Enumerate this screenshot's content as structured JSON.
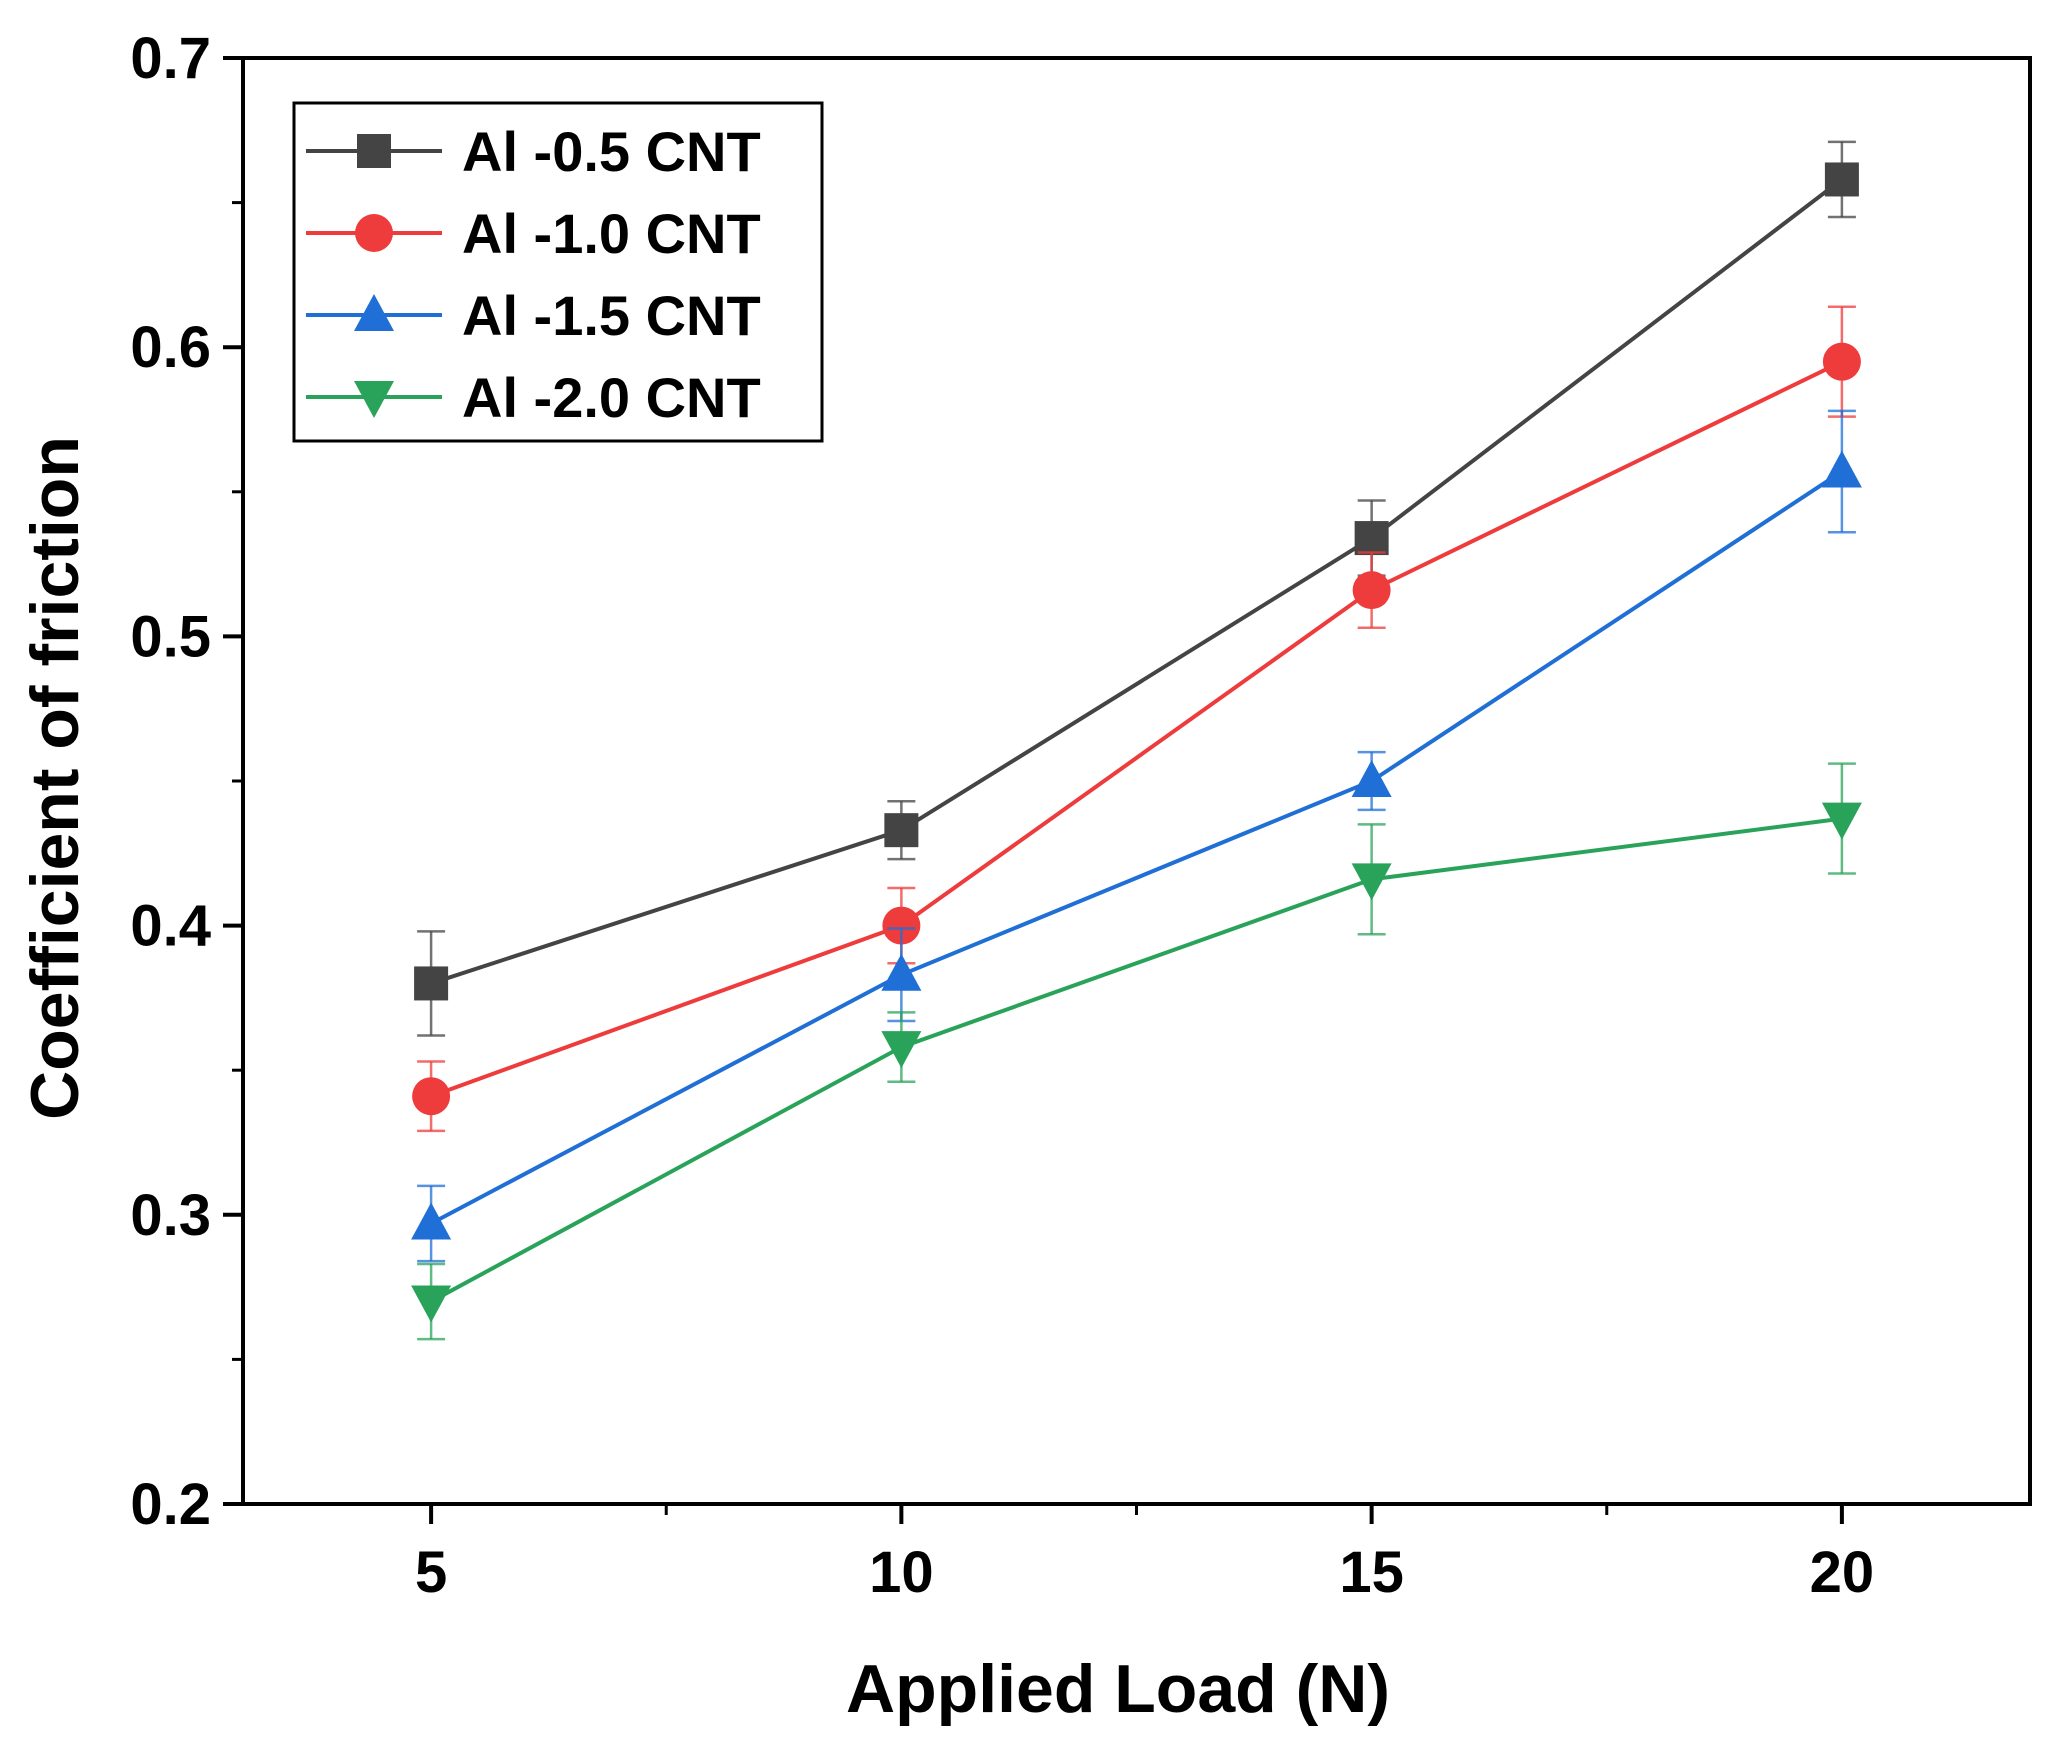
{
  "chart_data": {
    "type": "line",
    "title": "",
    "xlabel": "Applied Load (N)",
    "ylabel": "Coefficient of friction",
    "x": [
      5,
      10,
      15,
      20
    ],
    "xlim": [
      3,
      22
    ],
    "ylim": [
      0.2,
      0.7
    ],
    "xticks": [
      5,
      10,
      15,
      20
    ],
    "xtick_labels": [
      "5",
      "10",
      "15",
      "20"
    ],
    "yticks": [
      0.2,
      0.3,
      0.4,
      0.5,
      0.6,
      0.7
    ],
    "ytick_labels": [
      "0.2",
      "0.3",
      "0.4",
      "0.5",
      "0.6",
      "0.7"
    ],
    "grid": false,
    "legend_position": "top-left",
    "series": [
      {
        "name": "Al -0.5 CNT",
        "color": "#444444",
        "marker": "square",
        "values": [
          0.38,
          0.433,
          0.534,
          0.658
        ],
        "errors": [
          0.018,
          0.01,
          0.013,
          0.013
        ]
      },
      {
        "name": "Al -1.0 CNT",
        "color": "#ee3b3b",
        "marker": "circle",
        "values": [
          0.341,
          0.4,
          0.516,
          0.595
        ],
        "errors": [
          0.012,
          0.013,
          0.013,
          0.019
        ]
      },
      {
        "name": "Al -1.5 CNT",
        "color": "#1f6fd6",
        "marker": "triangle-up",
        "values": [
          0.297,
          0.383,
          0.45,
          0.557
        ],
        "errors": [
          0.013,
          0.016,
          0.01,
          0.021
        ]
      },
      {
        "name": "Al -2.0 CNT",
        "color": "#2aa35a",
        "marker": "triangle-down",
        "values": [
          0.27,
          0.358,
          0.416,
          0.437
        ],
        "errors": [
          0.013,
          0.012,
          0.019,
          0.019
        ]
      }
    ]
  }
}
